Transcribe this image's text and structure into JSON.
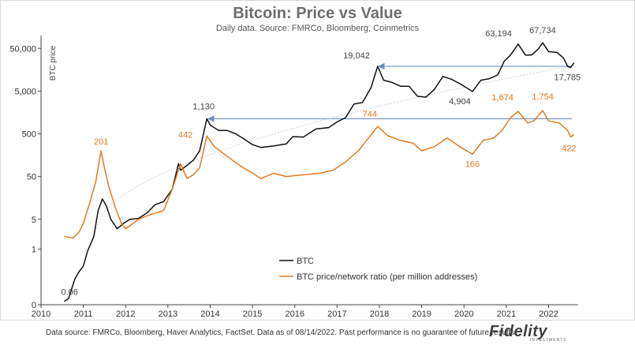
{
  "chart_data": {
    "type": "line",
    "title": "Bitcoin: Price vs Value",
    "subtitle": "Daily data.  Source: FMRCo, Bloomberg, Coinmetrics",
    "ylabel": "BTC price",
    "yscale": "log",
    "ylim": [
      0.05,
      100000
    ],
    "yticks": [
      {
        "value": 0.05,
        "label": "0"
      },
      {
        "value": 1,
        "label": "1"
      },
      {
        "value": 5,
        "label": "5"
      },
      {
        "value": 50,
        "label": "50"
      },
      {
        "value": 500,
        "label": "500"
      },
      {
        "value": 5000,
        "label": "5,000"
      },
      {
        "value": 50000,
        "label": "50,000"
      }
    ],
    "xlim": [
      2010,
      2022.7
    ],
    "xticks": [
      2010,
      2011,
      2012,
      2013,
      2014,
      2015,
      2016,
      2017,
      2018,
      2019,
      2020,
      2021,
      2022
    ],
    "series": [
      {
        "name": "BTC",
        "color": "#111111",
        "points": [
          [
            2010.55,
            0.06
          ],
          [
            2010.65,
            0.07
          ],
          [
            2010.8,
            0.2
          ],
          [
            2010.9,
            0.3
          ],
          [
            2011.0,
            0.4
          ],
          [
            2011.1,
            0.9
          ],
          [
            2011.25,
            2
          ],
          [
            2011.35,
            8
          ],
          [
            2011.45,
            15
          ],
          [
            2011.55,
            10
          ],
          [
            2011.65,
            5
          ],
          [
            2011.8,
            3
          ],
          [
            2011.95,
            4
          ],
          [
            2012.1,
            5
          ],
          [
            2012.3,
            5.2
          ],
          [
            2012.5,
            7
          ],
          [
            2012.7,
            11
          ],
          [
            2012.9,
            13
          ],
          [
            2013.1,
            25
          ],
          [
            2013.25,
            100
          ],
          [
            2013.3,
            70
          ],
          [
            2013.5,
            100
          ],
          [
            2013.6,
            120
          ],
          [
            2013.75,
            200
          ],
          [
            2013.92,
            1130
          ],
          [
            2014.0,
            800
          ],
          [
            2014.2,
            600
          ],
          [
            2014.4,
            600
          ],
          [
            2014.6,
            500
          ],
          [
            2014.8,
            380
          ],
          [
            2015.0,
            280
          ],
          [
            2015.2,
            240
          ],
          [
            2015.5,
            260
          ],
          [
            2015.8,
            290
          ],
          [
            2015.95,
            430
          ],
          [
            2016.2,
            420
          ],
          [
            2016.5,
            650
          ],
          [
            2016.8,
            700
          ],
          [
            2017.0,
            950
          ],
          [
            2017.2,
            1200
          ],
          [
            2017.4,
            2500
          ],
          [
            2017.6,
            2700
          ],
          [
            2017.8,
            6000
          ],
          [
            2017.96,
            19042
          ],
          [
            2018.1,
            9000
          ],
          [
            2018.3,
            8000
          ],
          [
            2018.5,
            6500
          ],
          [
            2018.7,
            6500
          ],
          [
            2018.9,
            3800
          ],
          [
            2019.1,
            3600
          ],
          [
            2019.3,
            5500
          ],
          [
            2019.5,
            11000
          ],
          [
            2019.7,
            9500
          ],
          [
            2019.9,
            7500
          ],
          [
            2020.2,
            4904
          ],
          [
            2020.4,
            9000
          ],
          [
            2020.6,
            9800
          ],
          [
            2020.8,
            12000
          ],
          [
            2020.95,
            25000
          ],
          [
            2021.1,
            35000
          ],
          [
            2021.28,
            63194
          ],
          [
            2021.45,
            35000
          ],
          [
            2021.6,
            35000
          ],
          [
            2021.75,
            48000
          ],
          [
            2021.86,
            67734
          ],
          [
            2022.0,
            42000
          ],
          [
            2022.2,
            40000
          ],
          [
            2022.35,
            30000
          ],
          [
            2022.45,
            19000
          ],
          [
            2022.52,
            17785
          ],
          [
            2022.6,
            23000
          ]
        ],
        "annotations": [
          {
            "x": 2010.55,
            "y": 0.06,
            "label": "0.06"
          },
          {
            "x": 2013.92,
            "y": 1130,
            "label": "1,130"
          },
          {
            "x": 2017.96,
            "y": 19042,
            "label": "19,042"
          },
          {
            "x": 2020.2,
            "y": 4904,
            "label": "4,904"
          },
          {
            "x": 2021.28,
            "y": 63194,
            "label": "63,194"
          },
          {
            "x": 2021.86,
            "y": 67734,
            "label": "67,734"
          },
          {
            "x": 2022.52,
            "y": 17785,
            "label": "17,785"
          }
        ]
      },
      {
        "name": "BTC price/network ratio (per million addresses)",
        "color": "#e07b1f",
        "points": [
          [
            2010.55,
            2.0
          ],
          [
            2010.75,
            1.8
          ],
          [
            2010.9,
            2.5
          ],
          [
            2011.0,
            4
          ],
          [
            2011.15,
            12
          ],
          [
            2011.3,
            40
          ],
          [
            2011.42,
            201
          ],
          [
            2011.5,
            80
          ],
          [
            2011.6,
            30
          ],
          [
            2011.75,
            10
          ],
          [
            2011.9,
            4
          ],
          [
            2012.0,
            3
          ],
          [
            2012.1,
            3.5
          ],
          [
            2012.3,
            5
          ],
          [
            2012.6,
            6.5
          ],
          [
            2012.9,
            8
          ],
          [
            2013.1,
            25
          ],
          [
            2013.3,
            100
          ],
          [
            2013.45,
            45
          ],
          [
            2013.6,
            55
          ],
          [
            2013.75,
            80
          ],
          [
            2013.92,
            442
          ],
          [
            2014.1,
            250
          ],
          [
            2014.4,
            150
          ],
          [
            2014.7,
            90
          ],
          [
            2015.0,
            60
          ],
          [
            2015.2,
            45
          ],
          [
            2015.5,
            60
          ],
          [
            2015.8,
            50
          ],
          [
            2016.2,
            55
          ],
          [
            2016.6,
            60
          ],
          [
            2016.9,
            70
          ],
          [
            2017.2,
            110
          ],
          [
            2017.5,
            200
          ],
          [
            2017.96,
            744
          ],
          [
            2018.2,
            450
          ],
          [
            2018.5,
            350
          ],
          [
            2018.8,
            300
          ],
          [
            2019.0,
            200
          ],
          [
            2019.3,
            250
          ],
          [
            2019.6,
            400
          ],
          [
            2019.9,
            250
          ],
          [
            2020.2,
            166
          ],
          [
            2020.45,
            350
          ],
          [
            2020.7,
            400
          ],
          [
            2020.9,
            600
          ],
          [
            2021.1,
            1200
          ],
          [
            2021.28,
            1674
          ],
          [
            2021.5,
            900
          ],
          [
            2021.65,
            1000
          ],
          [
            2021.86,
            1754
          ],
          [
            2022.0,
            1000
          ],
          [
            2022.25,
            900
          ],
          [
            2022.45,
            600
          ],
          [
            2022.52,
            422
          ],
          [
            2022.6,
            480
          ]
        ],
        "annotations": [
          {
            "x": 2011.42,
            "y": 201,
            "label": "201"
          },
          {
            "x": 2013.92,
            "y": 442,
            "label": "442"
          },
          {
            "x": 2017.96,
            "y": 744,
            "label": "744"
          },
          {
            "x": 2020.2,
            "y": 166,
            "label": "166"
          },
          {
            "x": 2021.28,
            "y": 1674,
            "label": "1,674"
          },
          {
            "x": 2021.86,
            "y": 1754,
            "label": "1,754"
          },
          {
            "x": 2022.52,
            "y": 422,
            "label": "422"
          }
        ]
      }
    ],
    "legend": [
      {
        "name": "BTC",
        "color": "#111111"
      },
      {
        "name": "BTC price/network ratio (per million addresses)",
        "color": "#e07b1f"
      }
    ],
    "legend_position": "lower-center",
    "grid": false
  },
  "footer": "Data source: FMRCo, Bloomberg, Haver Analytics, FactSet. Data as of 08/14/2022. Past performance is no guarantee of future results.",
  "brand": {
    "name": "Fidelity",
    "tagline": "INVESTMENTS"
  }
}
